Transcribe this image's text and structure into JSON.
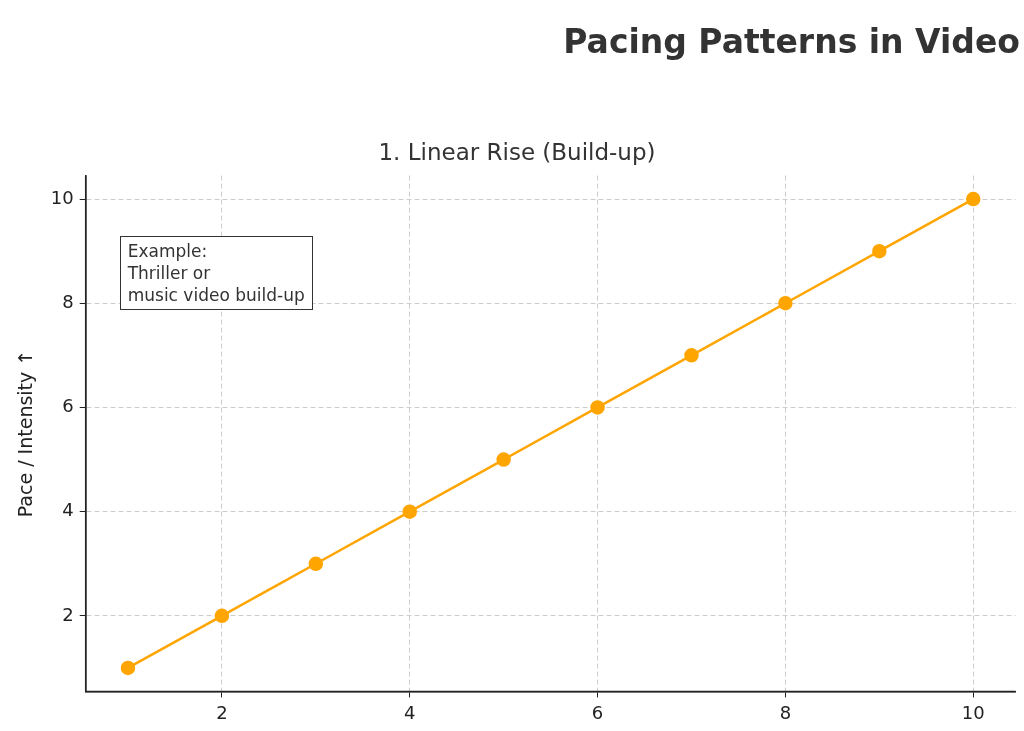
{
  "chart_data": {
    "type": "line",
    "title": "Pacing Patterns in Video",
    "subtitle": "1. Linear Rise (Build-up)",
    "ylabel": "Pace / Intensity ↑",
    "x": [
      1,
      2,
      3,
      4,
      5,
      6,
      7,
      8,
      9,
      10
    ],
    "series": [
      {
        "color": "#ffa500",
        "values": [
          1,
          2,
          3,
          4,
          5,
          6,
          7,
          8,
          9,
          10
        ]
      }
    ],
    "xlim": [
      0.55,
      10.45
    ],
    "ylim": [
      0.55,
      10.45
    ],
    "xticks": [
      2,
      4,
      6,
      8,
      10
    ],
    "yticks": [
      2,
      4,
      6,
      8,
      10
    ],
    "grid": true,
    "legend": false,
    "marker": "circle",
    "line_style": "solid",
    "annotations": [
      "Example:\nThriller or\nmusic video build-up"
    ]
  }
}
